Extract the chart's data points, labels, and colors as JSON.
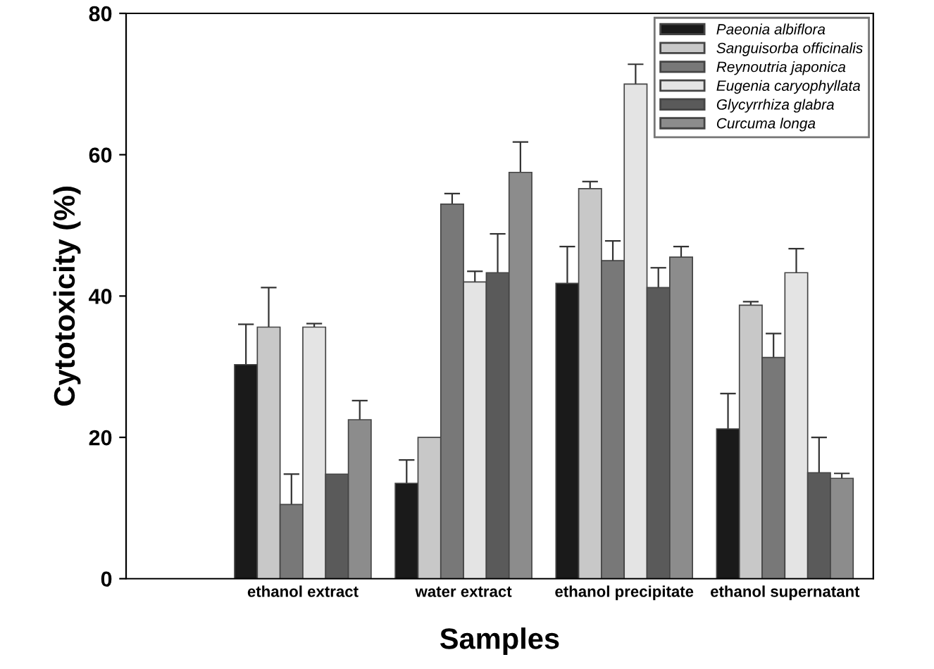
{
  "chart_data": {
    "type": "bar",
    "xlabel": "Samples",
    "ylabel": "Cytotoxicity (%)",
    "categories": [
      "ethanol extract",
      "water extract",
      "ethanol precipitate",
      "ethanol supernatant"
    ],
    "ylim": [
      0,
      80
    ],
    "yticks": [
      0,
      20,
      40,
      60,
      80
    ],
    "grid": false,
    "legend": "top right",
    "series": [
      {
        "name": "Paeonia albiflora",
        "color": "#1a1a1a",
        "values": [
          30.3,
          13.5,
          41.8,
          21.2
        ],
        "errors": [
          5.7,
          3.3,
          5.2,
          5
        ]
      },
      {
        "name": "Sanguisorba officinalis",
        "color": "#c8c8c8",
        "values": [
          35.6,
          20,
          55.2,
          38.7
        ],
        "errors": [
          5.6,
          null,
          1,
          0.5
        ]
      },
      {
        "name": "Reynoutria japonica",
        "color": "#787878",
        "values": [
          10.5,
          53,
          45,
          31.3
        ],
        "errors": [
          4.3,
          1.5,
          2.8,
          3.4
        ]
      },
      {
        "name": "Eugenia caryophyllata",
        "color": "#e4e4e4",
        "values": [
          35.6,
          42,
          70,
          43.3
        ],
        "errors": [
          0.5,
          1.5,
          2.8,
          3.4
        ]
      },
      {
        "name": "Glycyrrhiza glabra",
        "color": "#5a5a5a",
        "values": [
          14.8,
          43.3,
          41.2,
          15
        ],
        "errors": [
          null,
          5.5,
          2.8,
          5
        ]
      },
      {
        "name": "Curcuma longa",
        "color": "#8c8c8c",
        "values": [
          22.5,
          57.5,
          45.5,
          14.2
        ],
        "errors": [
          2.7,
          4.3,
          1.5,
          0.7
        ]
      }
    ]
  }
}
